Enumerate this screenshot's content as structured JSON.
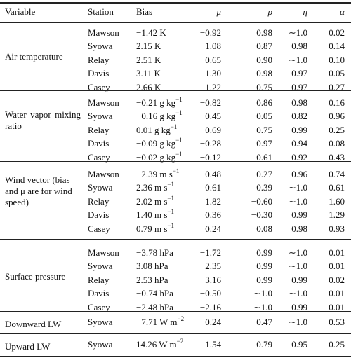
{
  "headers": {
    "variable": "Variable",
    "station": "Station",
    "bias": "Bias",
    "mu": "μ",
    "rho": "ρ",
    "eta": "η",
    "alpha": "α"
  },
  "groups": [
    {
      "variable": "Air temperature",
      "rows": [
        {
          "station": "Mawson",
          "bias": "−1.42",
          "bias_unit": "K",
          "bias_sup": "",
          "mu": "−0.92",
          "rho": "0.98",
          "eta": "∼1.0",
          "alpha": "0.02"
        },
        {
          "station": "Syowa",
          "bias": "2.15",
          "bias_unit": "K",
          "bias_sup": "",
          "mu": "1.08",
          "rho": "0.87",
          "eta": "0.98",
          "alpha": "0.14"
        },
        {
          "station": "Relay",
          "bias": "2.51",
          "bias_unit": "K",
          "bias_sup": "",
          "mu": "0.65",
          "rho": "0.90",
          "eta": "∼1.0",
          "alpha": "0.10"
        },
        {
          "station": "Davis",
          "bias": "3.11",
          "bias_unit": "K",
          "bias_sup": "",
          "mu": "1.30",
          "rho": "0.98",
          "eta": "0.97",
          "alpha": "0.05"
        },
        {
          "station": "Casey",
          "bias": "2.66",
          "bias_unit": "K",
          "bias_sup": "",
          "mu": "1.22",
          "rho": "0.75",
          "eta": "0.97",
          "alpha": "0.27"
        }
      ]
    },
    {
      "variable": "Water vapor mixing ratio",
      "rows": [
        {
          "station": "Mawson",
          "bias": "−0.21",
          "bias_unit": "g kg",
          "bias_sup": "−1",
          "mu": "−0.82",
          "rho": "0.86",
          "eta": "0.98",
          "alpha": "0.16"
        },
        {
          "station": "Syowa",
          "bias": "−0.16",
          "bias_unit": "g kg",
          "bias_sup": "−1",
          "mu": "−0.45",
          "rho": "0.05",
          "eta": "0.82",
          "alpha": "0.96"
        },
        {
          "station": "Relay",
          "bias": "0.01",
          "bias_unit": "g kg",
          "bias_sup": "−1",
          "mu": "0.69",
          "rho": "0.75",
          "eta": "0.99",
          "alpha": "0.25"
        },
        {
          "station": "Davis",
          "bias": "−0.09",
          "bias_unit": "g kg",
          "bias_sup": "−1",
          "mu": "−0.28",
          "rho": "0.97",
          "eta": "0.94",
          "alpha": "0.08"
        },
        {
          "station": "Casey",
          "bias": "−0.02",
          "bias_unit": "g kg",
          "bias_sup": "−1",
          "mu": "−0.12",
          "rho": "0.61",
          "eta": "0.92",
          "alpha": "0.43"
        }
      ]
    },
    {
      "variable": "Wind vector (bias and μ are for wind speed)",
      "rows": [
        {
          "station": "Mawson",
          "bias": "−2.39",
          "bias_unit": "m s",
          "bias_sup": "−1",
          "mu": "−0.48",
          "rho": "0.27",
          "eta": "0.96",
          "alpha": "0.74"
        },
        {
          "station": "Syowa",
          "bias": "2.36",
          "bias_unit": "m s",
          "bias_sup": "−1",
          "mu": "0.61",
          "rho": "0.39",
          "eta": "∼1.0",
          "alpha": "0.61"
        },
        {
          "station": "Relay",
          "bias": "2.02",
          "bias_unit": "m s",
          "bias_sup": "−1",
          "mu": "1.82",
          "rho": "−0.60",
          "eta": "∼1.0",
          "alpha": "1.60"
        },
        {
          "station": "Davis",
          "bias": "1.40",
          "bias_unit": "m s",
          "bias_sup": "−1",
          "mu": "0.36",
          "rho": "−0.30",
          "eta": "0.99",
          "alpha": "1.29"
        },
        {
          "station": "Casey",
          "bias": "0.79",
          "bias_unit": "m s",
          "bias_sup": "−1",
          "mu": "0.24",
          "rho": "0.08",
          "eta": "0.98",
          "alpha": "0.93"
        }
      ]
    },
    {
      "variable": "Surface pressure",
      "rows": [
        {
          "station": "Mawson",
          "bias": "−3.78",
          "bias_unit": "hPa",
          "bias_sup": "",
          "mu": "−1.72",
          "rho": "0.99",
          "eta": "∼1.0",
          "alpha": "0.01"
        },
        {
          "station": "Syowa",
          "bias": "3.08",
          "bias_unit": "hPa",
          "bias_sup": "",
          "mu": "2.35",
          "rho": "0.99",
          "eta": "∼1.0",
          "alpha": "0.01"
        },
        {
          "station": "Relay",
          "bias": "2.53",
          "bias_unit": "hPa",
          "bias_sup": "",
          "mu": "3.16",
          "rho": "0.99",
          "eta": "0.99",
          "alpha": "0.02"
        },
        {
          "station": "Davis",
          "bias": "−0.74",
          "bias_unit": "hPa",
          "bias_sup": "",
          "mu": "−0.50",
          "rho": "∼1.0",
          "eta": "∼1.0",
          "alpha": "0.01"
        },
        {
          "station": "Casey",
          "bias": "−2.48",
          "bias_unit": "hPa",
          "bias_sup": "",
          "mu": "−2.16",
          "rho": "∼1.0",
          "eta": "0.99",
          "alpha": "0.01"
        }
      ]
    },
    {
      "variable": "Downward LW",
      "rows": [
        {
          "station": "Syowa",
          "bias": "−7.71",
          "bias_unit": "W m",
          "bias_sup": "−2",
          "mu": "−0.24",
          "rho": "0.47",
          "eta": "∼1.0",
          "alpha": "0.53"
        }
      ]
    },
    {
      "variable": "Upward LW",
      "rows": [
        {
          "station": "Syowa",
          "bias": "14.26",
          "bias_unit": "W m",
          "bias_sup": "−2",
          "mu": "1.54",
          "rho": "0.79",
          "eta": "0.95",
          "alpha": "0.25"
        }
      ]
    }
  ]
}
